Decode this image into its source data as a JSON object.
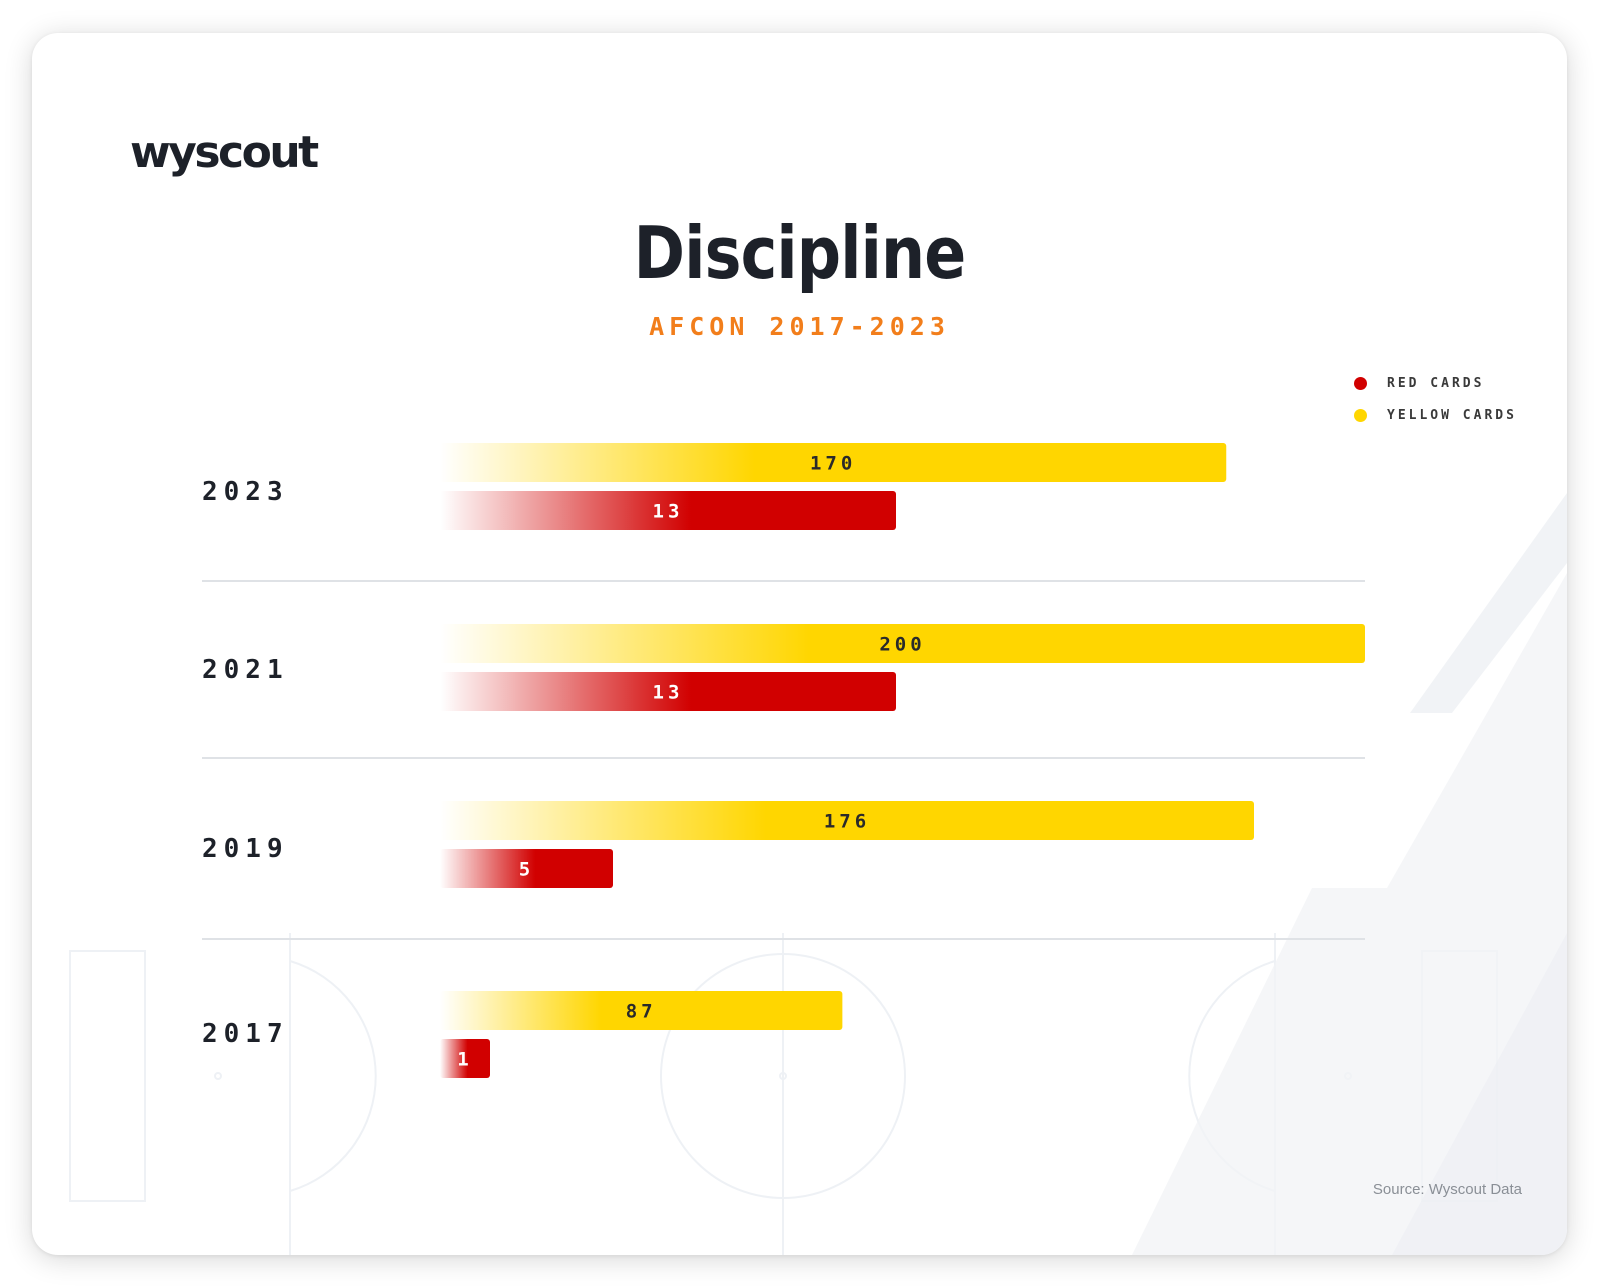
{
  "brand": {
    "logo_text": "wyscout"
  },
  "colors": {
    "yellow": "#ffd600",
    "red": "#d10000",
    "title": "#1d2129",
    "subtitle": "#f27e1b",
    "divider": "#dfe2e6"
  },
  "legend": {
    "items": [
      {
        "label": "RED CARDS",
        "color": "#d10000"
      },
      {
        "label": "YELLOW CARDS",
        "color": "#ffd600"
      }
    ]
  },
  "source": "Source: Wyscout Data",
  "chart_data": {
    "type": "bar",
    "orientation": "horizontal",
    "title": "Discipline",
    "subtitle": "AFCON 2017-2023",
    "categories": [
      "2023",
      "2021",
      "2019",
      "2017"
    ],
    "series": [
      {
        "name": "YELLOW CARDS",
        "color": "#ffd600",
        "values": [
          170,
          200,
          176,
          87
        ]
      },
      {
        "name": "RED CARDS",
        "color": "#d10000",
        "values": [
          13,
          13,
          5,
          1
        ]
      }
    ],
    "legend_position": "top-right",
    "grid": false,
    "data_labels": true
  }
}
